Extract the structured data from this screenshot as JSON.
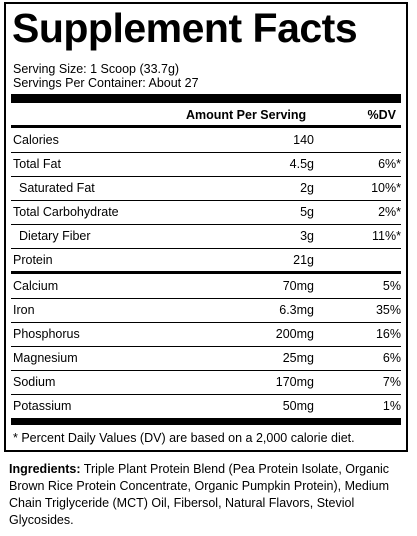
{
  "title": "Supplement Facts",
  "serving_size": "Serving Size: 1 Scoop (33.7g)",
  "servings_per_container": "Servings Per Container: About 27",
  "column_headers": {
    "amount": "Amount Per Serving",
    "dv": "%DV"
  },
  "nutrients": [
    {
      "name": "Calories",
      "amount": "140",
      "dv": ""
    },
    {
      "name": "Total Fat",
      "amount": "4.5g",
      "dv": "6%*"
    },
    {
      "name": "Saturated Fat",
      "amount": "2g",
      "dv": "10%*"
    },
    {
      "name": "Total Carbohydrate",
      "amount": "5g",
      "dv": "2%*"
    },
    {
      "name": "Dietary Fiber",
      "amount": "3g",
      "dv": "11%*"
    },
    {
      "name": "Protein",
      "amount": "21g",
      "dv": ""
    },
    {
      "name": "Calcium",
      "amount": "70mg",
      "dv": "5%"
    },
    {
      "name": "Iron",
      "amount": "6.3mg",
      "dv": "35%"
    },
    {
      "name": "Phosphorus",
      "amount": "200mg",
      "dv": "16%"
    },
    {
      "name": "Magnesium",
      "amount": "25mg",
      "dv": "6%"
    },
    {
      "name": "Sodium",
      "amount": "170mg",
      "dv": "7%"
    },
    {
      "name": "Potassium",
      "amount": "50mg",
      "dv": "1%"
    }
  ],
  "footnote": "* Percent Daily Values (DV) are based on a 2,000 calorie diet.",
  "ingredients": {
    "label": "Ingredients:",
    "text": "Triple Plant Protein Blend (Pea Protein Isolate, Organic Brown Rice Protein Concentrate, Organic Pumpkin Protein), Medium Chain Triglyceride (MCT) Oil, Fibersol, Natural Flavors, Steviol Glycosides."
  }
}
